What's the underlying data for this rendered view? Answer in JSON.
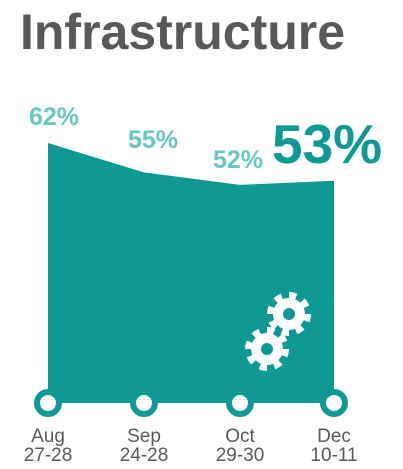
{
  "title": "Infrastructure",
  "colors": {
    "fill": "#0e9994",
    "label_light": "#67c7c2",
    "label_emph": "#0e9994",
    "tick_text": "#595959",
    "title_text": "#595959"
  },
  "icons": [
    "gear-icon",
    "gear-icon"
  ],
  "chart_data": {
    "type": "area",
    "title": "Infrastructure",
    "categories": [
      "Aug 27-28",
      "Sep 24-28",
      "Oct 29-30",
      "Dec 10-11"
    ],
    "tick_lines": [
      [
        "Aug",
        "27-28"
      ],
      [
        "Sep",
        "24-28"
      ],
      [
        "Oct",
        "29-30"
      ],
      [
        "Dec",
        "10-11"
      ]
    ],
    "values": [
      62,
      55,
      52,
      53
    ],
    "value_labels": [
      "62%",
      "55%",
      "52%",
      "53%"
    ],
    "unit": "%",
    "ylim": [
      0,
      62
    ],
    "emphasized_point": 3,
    "legend": "none",
    "grid": false
  }
}
